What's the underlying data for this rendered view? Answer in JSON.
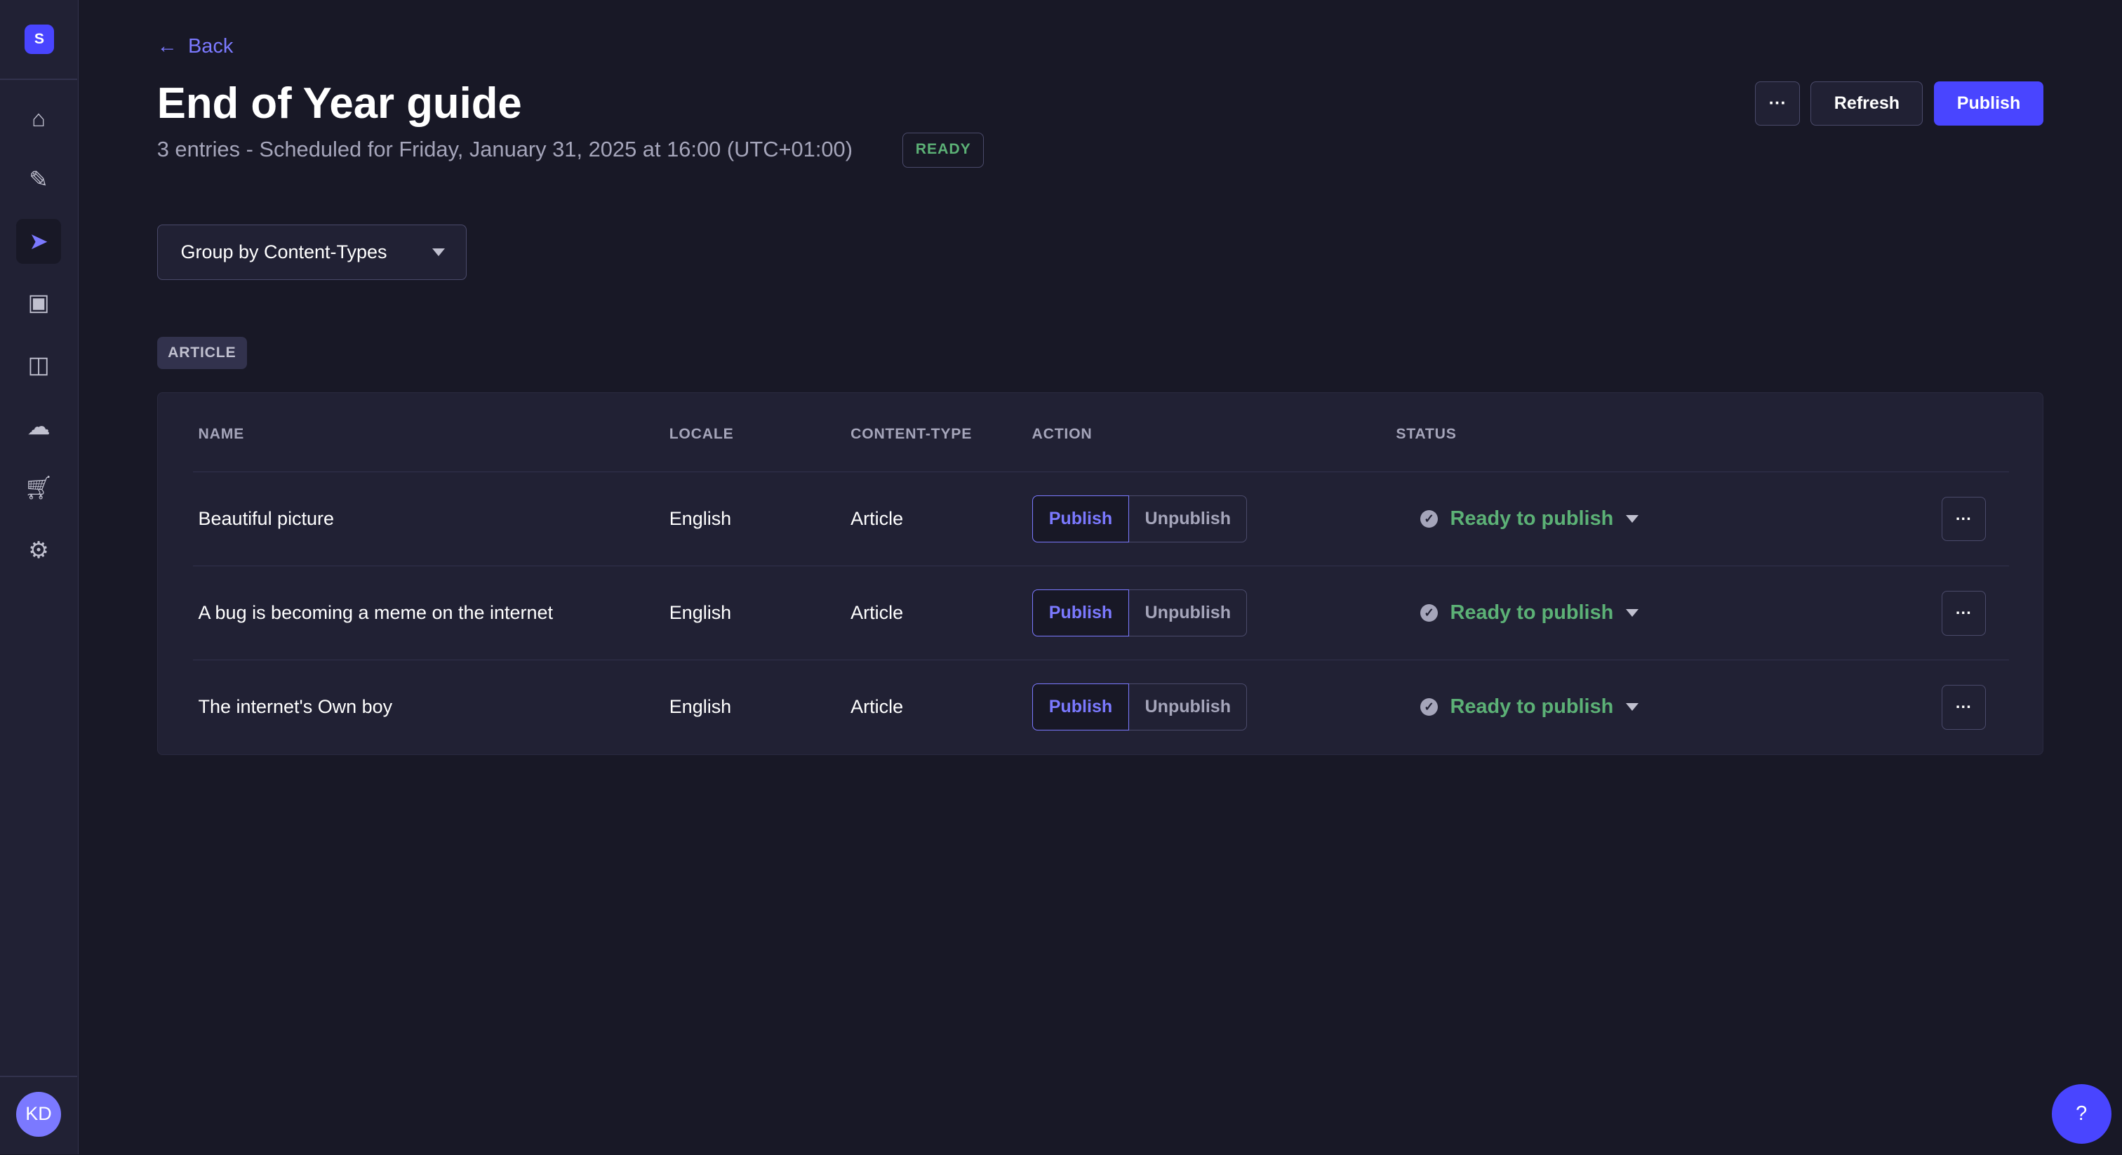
{
  "sidebar": {
    "logo": "S",
    "items": [
      {
        "icon": "home-icon"
      },
      {
        "icon": "feather-icon"
      },
      {
        "icon": "paper-plane-icon",
        "active": true
      },
      {
        "icon": "images-icon"
      },
      {
        "icon": "layout-icon"
      },
      {
        "icon": "cloud-icon"
      },
      {
        "icon": "cart-icon"
      },
      {
        "icon": "gear-icon"
      }
    ],
    "avatar": "KD"
  },
  "header": {
    "back": "Back",
    "title": "End of Year guide",
    "subtitle": "3 entries - Scheduled for Friday, January 31, 2025 at 16:00 (UTC+01:00)",
    "badge": "READY",
    "more": "···",
    "refresh": "Refresh",
    "publish": "Publish"
  },
  "group_select": {
    "value": "Group by Content-Types"
  },
  "group_tag": "ARTICLE",
  "table": {
    "headers": [
      "NAME",
      "LOCALE",
      "CONTENT-TYPE",
      "ACTION",
      "STATUS"
    ],
    "rows": [
      {
        "name": "Beautiful picture",
        "locale": "English",
        "type": "Article",
        "publish": "Publish",
        "unpublish": "Unpublish",
        "status": "Ready to publish",
        "more": "···"
      },
      {
        "name": "A bug is becoming a meme on the internet",
        "locale": "English",
        "type": "Article",
        "publish": "Publish",
        "unpublish": "Unpublish",
        "status": "Ready to publish",
        "more": "···"
      },
      {
        "name": "The internet's Own boy",
        "locale": "English",
        "type": "Article",
        "publish": "Publish",
        "unpublish": "Unpublish",
        "status": "Ready to publish",
        "more": "···"
      }
    ]
  },
  "help": "?",
  "colors": {
    "primary": "#4945ff",
    "link": "#7b79ff",
    "success": "#5cb176",
    "background": "#181826",
    "surface": "#212134"
  }
}
